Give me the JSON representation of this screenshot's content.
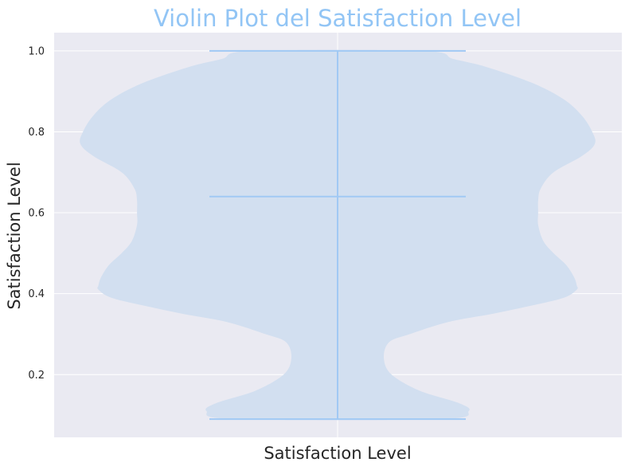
{
  "chart_data": {
    "type": "violin",
    "title": "Violin Plot del Satisfaction Level",
    "xlabel": "Satisfaction Level",
    "ylabel": "Satisfaction Level",
    "categories": [
      "Satisfaction Level"
    ],
    "ylim": [
      0.045,
      1.045
    ],
    "yticks": [
      0.2,
      0.4,
      0.6,
      0.8,
      1.0
    ],
    "ytick_labels": [
      "0.2",
      "0.4",
      "0.6",
      "0.8",
      "1.0"
    ],
    "grid": true,
    "stats": {
      "min": 0.09,
      "max": 1.0,
      "mean": 0.64
    },
    "density_profile": {
      "y": [
        0.09,
        0.11,
        0.13,
        0.16,
        0.2,
        0.24,
        0.28,
        0.3,
        0.33,
        0.35,
        0.37,
        0.39,
        0.41,
        0.42,
        0.44,
        0.47,
        0.5,
        0.53,
        0.57,
        0.6,
        0.63,
        0.66,
        0.7,
        0.74,
        0.77,
        0.8,
        0.84,
        0.88,
        0.92,
        0.96,
        0.98,
        1.0
      ],
      "half_width": [
        0.4,
        0.51,
        0.47,
        0.32,
        0.21,
        0.18,
        0.2,
        0.28,
        0.43,
        0.6,
        0.75,
        0.88,
        0.93,
        0.93,
        0.92,
        0.89,
        0.84,
        0.8,
        0.78,
        0.78,
        0.78,
        0.79,
        0.84,
        0.95,
        1.0,
        0.99,
        0.95,
        0.88,
        0.76,
        0.58,
        0.45,
        0.33
      ]
    },
    "colors": {
      "title": "#92c5f5",
      "violin_fill": "#d2dff0",
      "lines": "#a1c9f4",
      "plot_background": "#eaeaf2",
      "grid": "#ffffff"
    }
  }
}
